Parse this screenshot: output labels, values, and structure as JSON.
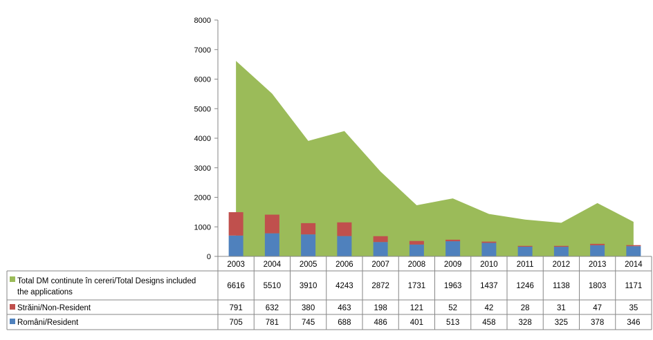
{
  "chart_data": {
    "type": "area",
    "categories": [
      "2003",
      "2004",
      "2005",
      "2006",
      "2007",
      "2008",
      "2009",
      "2010",
      "2011",
      "2012",
      "2013",
      "2014"
    ],
    "ylim": [
      0,
      8000
    ],
    "yticks": [
      "0",
      "1000",
      "2000",
      "3000",
      "4000",
      "5000",
      "6000",
      "7000",
      "8000"
    ],
    "series": [
      {
        "name": "Total DM continute în cereri/Total Designs included the applications",
        "name_lines": [
          "Total DM continute în cereri/Total Designs included",
          "the applications"
        ],
        "type": "area",
        "color": "#9BBB59",
        "values": [
          6616,
          5510,
          3910,
          4243,
          2872,
          1731,
          1963,
          1437,
          1246,
          1138,
          1803,
          1171
        ],
        "labels": [
          "6616",
          "5510",
          "3910",
          "4243",
          "2872",
          "1731",
          "1963",
          "1437",
          "1246",
          "1138",
          "1803",
          "1171"
        ]
      },
      {
        "name": "Străini/Non-Resident",
        "type": "stacked-bar",
        "color": "#C0504D",
        "values": [
          791,
          632,
          380,
          463,
          198,
          121,
          52,
          42,
          28,
          31,
          47,
          35
        ],
        "labels": [
          "791",
          "632",
          "380",
          "463",
          "198",
          "121",
          "52",
          "42",
          "28",
          "31",
          "47",
          "35"
        ]
      },
      {
        "name": "Români/Resident",
        "type": "stacked-bar",
        "color": "#4F81BD",
        "values": [
          705,
          781,
          745,
          688,
          486,
          401,
          513,
          458,
          328,
          325,
          378,
          346
        ],
        "labels": [
          "705",
          "781",
          "745",
          "688",
          "486",
          "401",
          "513",
          "458",
          "328",
          "325",
          "378",
          "346"
        ]
      }
    ],
    "grid": false,
    "legend": "data-table"
  }
}
